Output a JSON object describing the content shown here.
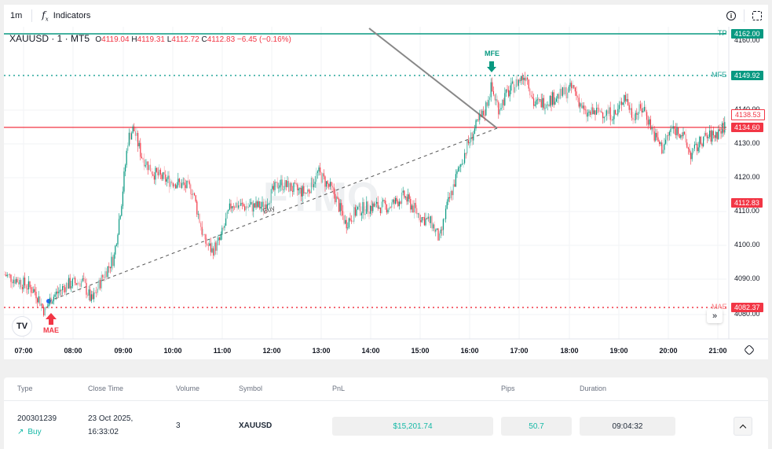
{
  "toolbar": {
    "interval": "1m",
    "indicators_label": "Indicators",
    "indicators_icon": "fx-icon",
    "info_icon": "info-icon",
    "fullscreen_icon": "fullscreen-icon"
  },
  "legend": {
    "symbol": "XAUUSD · 1 · MT5",
    "open_label": "O",
    "open": "4119.04",
    "high_label": "H",
    "high": "4119.31",
    "low_label": "L",
    "low": "4112.72",
    "close_label": "C",
    "close": "4112.83",
    "change": "−6.45 (−0.16%)"
  },
  "colors": {
    "up": "#089981",
    "down": "#f23645",
    "tp": "#089981",
    "sl": "#f23645",
    "mfe": "#26a69a",
    "mae": "#f23645"
  },
  "price_axis": {
    "ticks": [
      "4160.00",
      "4140.00",
      "4130.00",
      "4120.00",
      "4110.00",
      "4100.00",
      "4090.00",
      "4080.00"
    ]
  },
  "time_axis": {
    "ticks": [
      "07:00",
      "08:00",
      "09:00",
      "10:00",
      "11:00",
      "12:00",
      "13:00",
      "14:00",
      "15:00",
      "16:00",
      "17:00",
      "18:00",
      "19:00",
      "20:00",
      "21:00"
    ]
  },
  "levels": {
    "tp": {
      "tag": "TP",
      "price": "4162.00"
    },
    "mfe": {
      "tag": "MFE",
      "price": "4149.92"
    },
    "current": {
      "price": "4138.53"
    },
    "sl": {
      "tag": "SL",
      "price": "4134.60"
    },
    "last": {
      "price": "4112.83"
    },
    "mae": {
      "tag": "MAE",
      "price": "4082.37"
    }
  },
  "markers": {
    "mfe_label": "MFE",
    "mae_label": "MAE",
    "trade_label": "Buy"
  },
  "watermark": "FTMO",
  "table": {
    "headers": [
      "Type",
      "Close Time",
      "Volume",
      "Symbol",
      "PnL",
      "Pips",
      "Duration"
    ],
    "row": {
      "id": "200301239",
      "type": "Buy",
      "close_date": "23 Oct 2025,",
      "close_time": "16:33:02",
      "volume": "3",
      "symbol": "XAUUSD",
      "pnl": "$15,201.74",
      "pips": "50.7",
      "duration": "09:04:32"
    }
  }
}
